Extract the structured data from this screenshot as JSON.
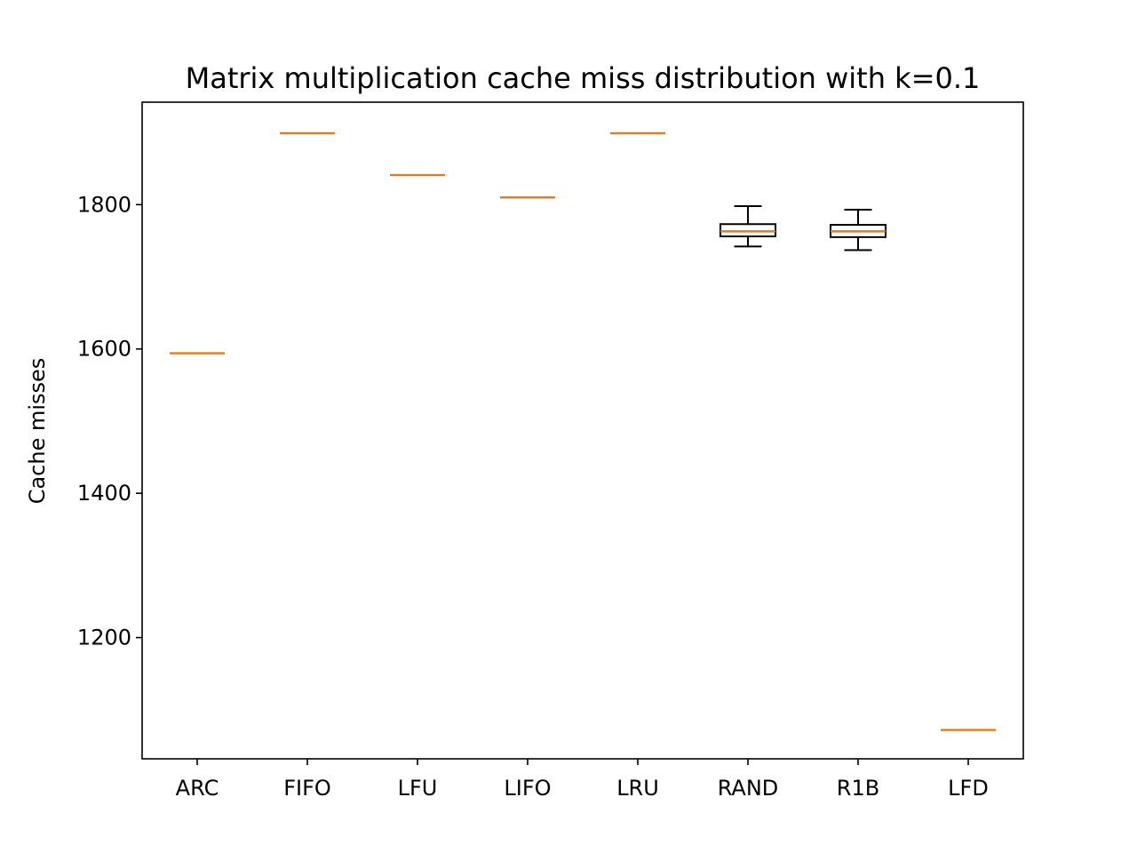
{
  "chart_data": {
    "type": "box",
    "title": "Matrix multiplication cache miss distribution with k=0.1",
    "xlabel": "",
    "ylabel": "Cache misses",
    "ylim": [
      1032,
      1942
    ],
    "yticks": [
      1200,
      1400,
      1600,
      1800
    ],
    "grid": false,
    "categories": [
      "ARC",
      "FIFO",
      "LFU",
      "LIFO",
      "LRU",
      "RAND",
      "R1B",
      "LFD"
    ],
    "boxes": [
      {
        "label": "ARC",
        "whislo": 1594,
        "q1": 1594,
        "med": 1594,
        "q3": 1594,
        "whishi": 1594
      },
      {
        "label": "FIFO",
        "whislo": 1899,
        "q1": 1899,
        "med": 1899,
        "q3": 1899,
        "whishi": 1899
      },
      {
        "label": "LFU",
        "whislo": 1841,
        "q1": 1841,
        "med": 1841,
        "q3": 1841,
        "whishi": 1841
      },
      {
        "label": "LIFO",
        "whislo": 1810,
        "q1": 1810,
        "med": 1810,
        "q3": 1810,
        "whishi": 1810
      },
      {
        "label": "LRU",
        "whislo": 1899,
        "q1": 1899,
        "med": 1899,
        "q3": 1899,
        "whishi": 1899
      },
      {
        "label": "RAND",
        "whislo": 1742,
        "q1": 1756,
        "med": 1763,
        "q3": 1773,
        "whishi": 1798
      },
      {
        "label": "R1B",
        "whislo": 1737,
        "q1": 1755,
        "med": 1763,
        "q3": 1772,
        "whishi": 1793
      },
      {
        "label": "LFD",
        "whislo": 1072,
        "q1": 1072,
        "med": 1072,
        "q3": 1072,
        "whishi": 1072
      }
    ],
    "colors": {
      "box": "#000000",
      "median": "#e07b20",
      "axes": "#000000"
    }
  }
}
